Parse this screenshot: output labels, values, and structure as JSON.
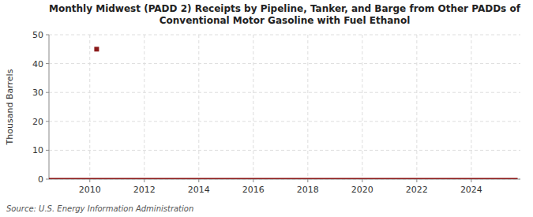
{
  "chart_data": {
    "type": "line",
    "title": "Monthly Midwest (PADD 2) Receipts by Pipeline, Tanker, and Barge from Other PADDs of\nConventional Motor Gasoline with Fuel Ethanol",
    "y_label": "Thousand Barrels",
    "annotations": [
      "Source: U.S. Energy Information Administration"
    ],
    "series": [
      {
        "type": "line",
        "color": "#8b1a1a",
        "x": [
          2008.5,
          2025.7
        ],
        "values": [
          0,
          0
        ]
      },
      {
        "type": "scatter",
        "color": "#8b1a1a",
        "marker": "square",
        "x": [
          2010.25
        ],
        "values": [
          45
        ]
      }
    ],
    "xlim": [
      2008.5,
      2025.8
    ],
    "ylim": [
      0,
      50
    ],
    "xticks": [
      2010,
      2012,
      2014,
      2016,
      2018,
      2020,
      2022,
      2024
    ],
    "yticks": [
      0,
      10,
      20,
      30,
      40,
      50
    ],
    "grid": true
  }
}
